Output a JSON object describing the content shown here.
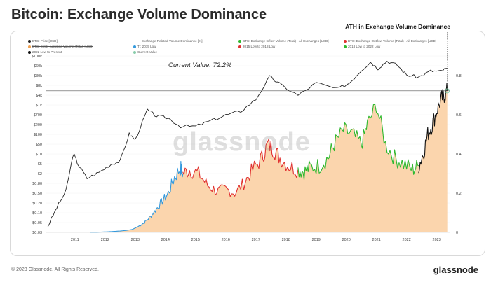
{
  "title": "Bitcoin: Exchange Volume Dominance",
  "annotation": "ATH in Exchange Volume Dominance",
  "current_value_label": "Current Value: 72.2%",
  "watermark": "glassnode",
  "footer": "© 2023 Glassnode. All Rights Reserved.",
  "brand": "glassnode",
  "legend": [
    {
      "label": "BTC: Price [USD]",
      "color": "#222222",
      "kind": "dot",
      "strike": false
    },
    {
      "label": "Exchange Related Volume Dominance [%]",
      "color": "#999999",
      "kind": "line",
      "strike": false
    },
    {
      "label": "BTC: Exchange Inflow Volume (Total) - All Exchanges [USD]",
      "color": "#2eb82e",
      "kind": "dot",
      "strike": true
    },
    {
      "label": "BTC: Exchange Outflow Volume (Total) - All Exchanges [USD]",
      "color": "#e03030",
      "kind": "dot",
      "strike": true
    },
    {
      "label": "BTC: Entity-Adjusted Volume (Total) [USD]",
      "color": "#f0a050",
      "kind": "dot",
      "strike": true
    },
    {
      "label": "TI: 2015 Low",
      "color": "#3399dd",
      "kind": "dot",
      "strike": false
    },
    {
      "label": "2015 Low to 2018 Low",
      "color": "#e03030",
      "kind": "dot",
      "strike": false
    },
    {
      "label": "2018 Low to 2022 Low",
      "color": "#2eb82e",
      "kind": "dot",
      "strike": false
    },
    {
      "label": "2022 Low to Present",
      "color": "#111111",
      "kind": "dot",
      "strike": false
    },
    {
      "label": "Current Value",
      "color": "#88ccaa",
      "kind": "dot",
      "strike": false
    }
  ],
  "chart_data": {
    "type": "line",
    "x_ticks": [
      "2011",
      "2012",
      "2013",
      "2014",
      "2015",
      "2016",
      "2017",
      "2018",
      "2019",
      "2020",
      "2021",
      "2022",
      "2023"
    ],
    "y_left_ticks": [
      "$100k",
      "$60k",
      "$30k",
      "$8k",
      "$4k",
      "$1k",
      "$700",
      "$200",
      "$100",
      "$50",
      "$10",
      "$5",
      "$2",
      "$0.80",
      "$0.50",
      "$0.20",
      "$0.10",
      "$0.05",
      "$0.03"
    ],
    "y_right_ticks": [
      "0.8",
      "0.6",
      "0.4",
      "0.2",
      "0"
    ],
    "y_right_range": [
      0,
      0.9
    ],
    "current_value": 0.722,
    "price_series": {
      "name": "BTC: Price [USD]",
      "x": [
        2010.6,
        2010.9,
        2011.2,
        2011.45,
        2011.6,
        2011.9,
        2012.3,
        2012.7,
        2013.0,
        2013.3,
        2013.5,
        2013.9,
        2014.2,
        2014.6,
        2015.0,
        2015.5,
        2016.0,
        2016.5,
        2017.0,
        2017.5,
        2017.96,
        2018.3,
        2018.9,
        2019.5,
        2020.2,
        2020.6,
        2021.0,
        2021.3,
        2021.55,
        2021.85,
        2022.2,
        2022.5,
        2022.9,
        2023.3,
        2023.6,
        2023.85
      ],
      "values": [
        0.05,
        0.25,
        1,
        25,
        10,
        3,
        5,
        10,
        13,
        130,
        80,
        1000,
        600,
        500,
        250,
        250,
        400,
        650,
        900,
        2500,
        17000,
        9000,
        3500,
        10000,
        6000,
        10000,
        30000,
        60000,
        35000,
        65000,
        45000,
        20000,
        16500,
        28000,
        26500,
        35000
      ]
    },
    "dominance_segments": [
      {
        "name": "TI: 2015 Low",
        "color": "#3399dd",
        "x": [
          2012.0,
          2012.2,
          2012.4,
          2012.6,
          2012.8,
          2013.0,
          2013.2,
          2013.4,
          2013.6,
          2013.8,
          2014.0,
          2014.2,
          2014.4,
          2014.6,
          2014.8,
          2015.0,
          2015.08
        ],
        "values": [
          0.0,
          0.0,
          0.002,
          0.003,
          0.005,
          0.007,
          0.01,
          0.015,
          0.03,
          0.05,
          0.08,
          0.12,
          0.16,
          0.2,
          0.28,
          0.33,
          0.3
        ]
      },
      {
        "name": "2015 Low to 2018 Low",
        "color": "#e03030",
        "x": [
          2015.08,
          2015.3,
          2015.6,
          2015.9,
          2016.2,
          2016.5,
          2016.8,
          2017.1,
          2017.4,
          2017.7,
          2017.9,
          2018.1,
          2018.3,
          2018.6,
          2018.9
        ],
        "values": [
          0.3,
          0.32,
          0.3,
          0.24,
          0.21,
          0.22,
          0.2,
          0.25,
          0.32,
          0.38,
          0.45,
          0.42,
          0.38,
          0.34,
          0.32
        ]
      },
      {
        "name": "2018 Low to 2022 Low",
        "color": "#2eb82e",
        "x": [
          2018.9,
          2019.1,
          2019.3,
          2019.6,
          2019.9,
          2020.1,
          2020.4,
          2020.7,
          2021.0,
          2021.2,
          2021.5,
          2021.8,
          2022.1,
          2022.4,
          2022.7,
          2022.9
        ],
        "values": [
          0.32,
          0.31,
          0.33,
          0.34,
          0.38,
          0.45,
          0.52,
          0.5,
          0.45,
          0.55,
          0.65,
          0.45,
          0.38,
          0.35,
          0.32,
          0.34
        ]
      },
      {
        "name": "2022 Low to Present",
        "color": "#111111",
        "x": [
          2022.9,
          2023.05,
          2023.2,
          2023.35,
          2023.5,
          2023.65,
          2023.75,
          2023.85
        ],
        "values": [
          0.34,
          0.4,
          0.5,
          0.55,
          0.62,
          0.68,
          0.7,
          0.722
        ]
      }
    ]
  }
}
